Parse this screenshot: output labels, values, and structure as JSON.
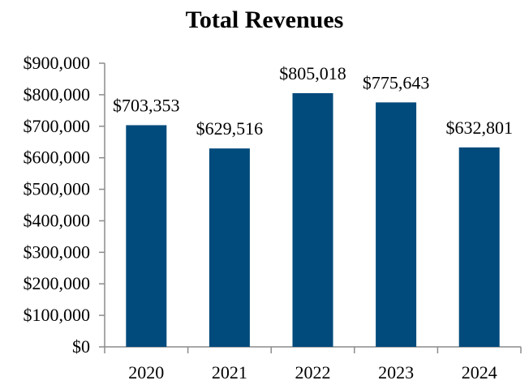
{
  "chart_data": {
    "type": "bar",
    "title": "Total Revenues",
    "xlabel": "",
    "ylabel": "",
    "categories": [
      "2020",
      "2021",
      "2022",
      "2023",
      "2024"
    ],
    "values": [
      703353,
      629516,
      805018,
      775643,
      632801
    ],
    "data_labels": [
      "$703,353",
      "$629,516",
      "$805,018",
      "$775,643",
      "$632,801"
    ],
    "ylim": [
      0,
      900000
    ],
    "y_ticks": [
      0,
      100000,
      200000,
      300000,
      400000,
      500000,
      600000,
      700000,
      800000,
      900000
    ],
    "y_tick_labels": [
      "$0",
      "$100,000",
      "$200,000",
      "$300,000",
      "$400,000",
      "$500,000",
      "$600,000",
      "$700,000",
      "$800,000",
      "$900,000"
    ],
    "grid": false,
    "legend": "none",
    "bar_color": "#004a7c"
  }
}
